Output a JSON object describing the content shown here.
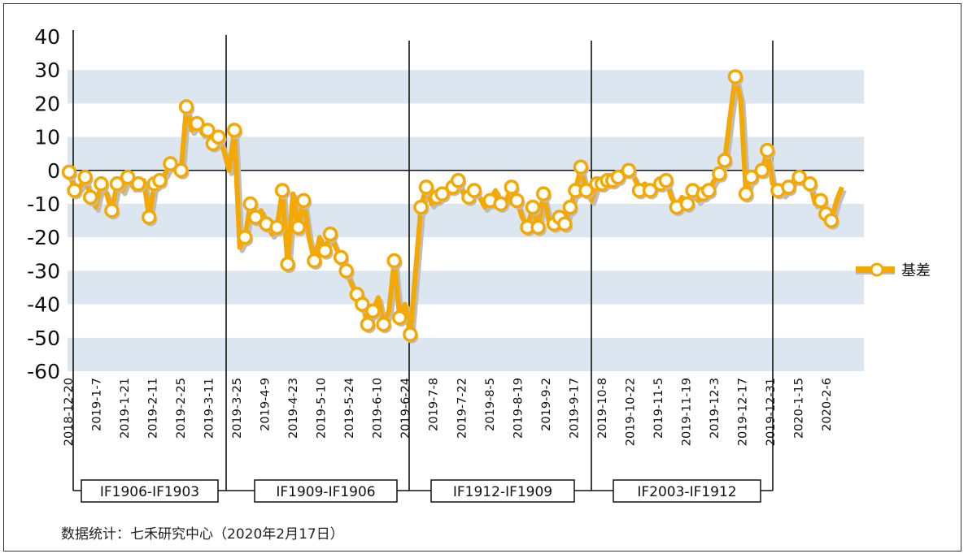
{
  "chart_data": {
    "type": "line",
    "ylim": [
      -60,
      40
    ],
    "yticks": [
      40,
      30,
      20,
      10,
      0,
      -10,
      -20,
      -30,
      -40,
      -50,
      -60
    ],
    "grid": "alternating horizontal bands",
    "legend_position": "right",
    "colors": {
      "line": "#F5A800",
      "marker_fill": "#FFFFFF",
      "band": "#DCE6F1",
      "shadow": "#BDBDBD"
    },
    "x_tick_labels": [
      "2018-12-20",
      "2019-1-7",
      "2019-1-21",
      "2019-2-11",
      "2019-2-25",
      "2019-3-11",
      "2019-3-25",
      "2019-4-9",
      "2019-4-23",
      "2019-5-10",
      "2019-5-24",
      "2019-6-10",
      "2019-6-24",
      "2019-7-8",
      "2019-7-22",
      "2019-8-5",
      "2019-8-19",
      "2019-9-2",
      "2019-9-17",
      "2019-10-8",
      "2019-10-22",
      "2019-11-5",
      "2019-11-19",
      "2019-12-3",
      "2019-12-17",
      "2019-12-31",
      "2020-1-15",
      "2020-2-6"
    ],
    "series": [
      {
        "name": "基差",
        "values": [
          -0.5,
          -6,
          -5,
          -2,
          -8,
          -11,
          -4,
          -7,
          -12,
          -4,
          -6,
          -2,
          -5,
          -4,
          -3,
          -14,
          -4,
          -3,
          -1,
          2,
          1,
          0,
          19,
          12,
          14,
          11,
          12,
          8,
          10,
          6,
          0,
          12,
          -23,
          -20,
          -10,
          -14,
          -12,
          -16,
          -19,
          -17,
          -6,
          -28,
          -7,
          -17,
          -9,
          -20,
          -27,
          -20,
          -24,
          -19,
          -23,
          -26,
          -30,
          -34,
          -37,
          -40,
          -46,
          -42,
          -38,
          -46,
          -42,
          -27,
          -44,
          -40,
          -49,
          -30,
          -11,
          -5,
          -10,
          -8,
          -7,
          -6,
          -5,
          -3,
          -7,
          -8,
          -6,
          -8,
          -11,
          -9,
          -6,
          -10,
          -9,
          -5,
          -9,
          -14,
          -17,
          -11,
          -17,
          -7,
          -15,
          -16,
          -14,
          -16,
          -11,
          -6,
          1,
          -6,
          -9,
          -4,
          -4,
          -3,
          -3,
          -2,
          -1,
          0,
          -2,
          -6,
          -4,
          -6,
          -5,
          -4,
          -3,
          -8,
          -11,
          -8,
          -10,
          -6,
          -9,
          -7,
          -6,
          -3,
          -1,
          3,
          16,
          28,
          21,
          -7,
          -2,
          0,
          0,
          6,
          -4,
          -6,
          -7,
          -5,
          -3,
          -2,
          -3,
          -4,
          -10,
          -9,
          -13,
          -15,
          -9,
          -5
        ]
      }
    ],
    "markers_index": [
      0,
      1,
      3,
      4,
      6,
      8,
      9,
      11,
      13,
      15,
      16,
      17,
      19,
      21,
      22,
      24,
      26,
      27,
      28,
      31,
      33,
      34,
      35,
      37,
      39,
      40,
      41,
      43,
      44,
      46,
      48,
      49,
      51,
      52,
      54,
      55,
      56,
      57,
      59,
      61,
      62,
      64,
      66,
      67,
      69,
      70,
      72,
      73,
      75,
      76,
      79,
      81,
      83,
      84,
      86,
      87,
      88,
      89,
      91,
      92,
      93,
      94,
      95,
      96,
      97,
      99,
      100,
      101,
      102,
      103,
      105,
      107,
      109,
      111,
      112,
      114,
      116,
      117,
      119,
      120,
      122,
      123,
      125,
      127,
      128,
      130,
      131,
      133,
      135,
      137,
      139,
      141,
      142,
      143
    ]
  },
  "contracts": [
    "IF1906-IF1903",
    "IF1909-IF1906",
    "IF1912-IF1909",
    "IF2003-IF1912"
  ],
  "legend": {
    "label": "基差"
  },
  "source": "数据统计：七禾研究中心（2020年2月17日）"
}
